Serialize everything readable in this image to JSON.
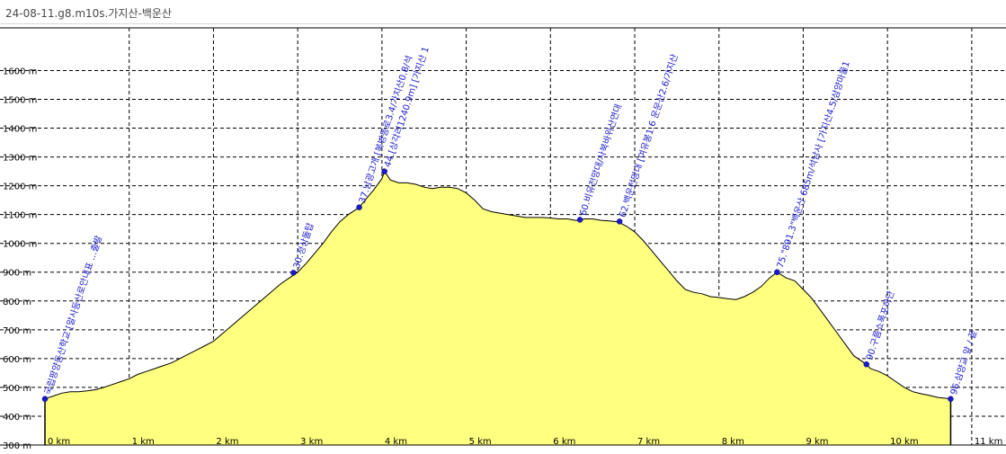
{
  "window": {
    "title": "24-08-11.g8.m10s.가지산-백운산"
  },
  "chart_data": {
    "type": "area",
    "title": "",
    "xlabel": "",
    "ylabel": "",
    "xlim": [
      0,
      11.3
    ],
    "ylim": [
      300,
      1720
    ],
    "grid": true,
    "x_ticks": [
      0,
      1,
      2,
      3,
      4,
      5,
      6,
      7,
      8,
      9,
      10,
      11
    ],
    "x_tick_labels": [
      "0 km",
      "1 km",
      "2 km",
      "3 km",
      "4 km",
      "5 km",
      "6 km",
      "7 km",
      "8 km",
      "9 km",
      "10 km",
      "11 km"
    ],
    "y_ticks": [
      300,
      400,
      500,
      600,
      700,
      800,
      900,
      1000,
      1100,
      1200,
      1300,
      1400,
      1500,
      1600
    ],
    "y_tick_labels": [
      "300 m",
      "400 m",
      "500 m",
      "600 m",
      "700 m",
      "800 m",
      "900 m",
      "1000 m",
      "1100 m",
      "1200 m",
      "1300 m",
      "1400 m",
      "1500 m",
      "1600 m"
    ],
    "fill_color": "#ffff80",
    "line_color": "#000000",
    "series": [
      {
        "x": [
          0,
          0.1,
          0.2,
          0.3,
          0.4,
          0.5,
          0.6,
          0.7,
          0.8,
          0.9,
          1.0,
          1.1,
          1.2,
          1.3,
          1.4,
          1.5,
          1.6,
          1.7,
          1.8,
          1.9,
          2.0,
          2.1,
          2.2,
          2.3,
          2.4,
          2.5,
          2.6,
          2.7,
          2.8,
          2.9,
          3.0,
          3.1,
          3.2,
          3.3,
          3.4,
          3.5,
          3.6,
          3.73,
          3.8,
          3.9,
          4.0,
          4.03,
          4.1,
          4.2,
          4.3,
          4.4,
          4.5,
          4.6,
          4.7,
          4.8,
          4.9,
          5.0,
          5.1,
          5.2,
          5.3,
          5.4,
          5.5,
          5.6,
          5.7,
          5.8,
          5.9,
          6.0,
          6.1,
          6.2,
          6.3,
          6.35,
          6.4,
          6.5,
          6.6,
          6.7,
          6.8,
          6.9,
          7.0,
          7.1,
          7.2,
          7.3,
          7.4,
          7.5,
          7.6,
          7.7,
          7.8,
          7.9,
          8.0,
          8.1,
          8.2,
          8.3,
          8.4,
          8.5,
          8.6,
          8.69,
          8.8,
          8.9,
          9.0,
          9.1,
          9.2,
          9.3,
          9.4,
          9.5,
          9.6,
          9.75,
          9.8,
          9.9,
          10.0,
          10.1,
          10.2,
          10.3,
          10.4,
          10.5,
          10.6,
          10.7,
          10.75
        ],
        "y": [
          460,
          470,
          480,
          485,
          485,
          488,
          492,
          500,
          510,
          520,
          530,
          545,
          555,
          565,
          575,
          585,
          600,
          615,
          630,
          645,
          660,
          685,
          710,
          735,
          760,
          785,
          810,
          835,
          860,
          880,
          900,
          930,
          965,
          1000,
          1040,
          1075,
          1100,
          1125,
          1150,
          1185,
          1225,
          1250,
          1220,
          1210,
          1210,
          1205,
          1195,
          1190,
          1195,
          1195,
          1190,
          1175,
          1150,
          1120,
          1110,
          1105,
          1100,
          1095,
          1090,
          1090,
          1090,
          1088,
          1085,
          1085,
          1080,
          1080,
          1085,
          1085,
          1080,
          1078,
          1075,
          1060,
          1040,
          1010,
          975,
          940,
          905,
          870,
          840,
          830,
          825,
          815,
          812,
          808,
          805,
          815,
          830,
          850,
          880,
          900,
          880,
          870,
          840,
          810,
          770,
          730,
          690,
          650,
          610,
          580,
          565,
          555,
          540,
          520,
          500,
          485,
          478,
          472,
          465,
          462,
          460
        ]
      }
    ],
    "waypoints": [
      {
        "x": 0.0,
        "y": 460,
        "label": "국립팡양등산학교 [말사등산로안내표 ...출발"
      },
      {
        "x": 2.95,
        "y": 898,
        "label": "30.정상돌탑"
      },
      {
        "x": 3.73,
        "y": 1125,
        "label": "37.남광고개 [복병등로3.4/가지산0.8/석"
      },
      {
        "x": 4.03,
        "y": 1250,
        "label": "44.[상각리1240.9m] [가지산 1"
      },
      {
        "x": 6.35,
        "y": 1082,
        "label": "60.비유전망대/사북바위산연대"
      },
      {
        "x": 6.82,
        "y": 1076,
        "label": "62.백운전망대 [여유봉1.6 운문산2.6/가지산"
      },
      {
        "x": 8.69,
        "y": 900,
        "label": "75.\"891.3\"백운산 685m/석남사 [가지산4.5/삼양마을1"
      },
      {
        "x": 9.75,
        "y": 580,
        "label": "90.구름쇼폭포하단"
      },
      {
        "x": 10.75,
        "y": 460,
        "label": "96.삼양교 앞 / 끝"
      }
    ]
  }
}
